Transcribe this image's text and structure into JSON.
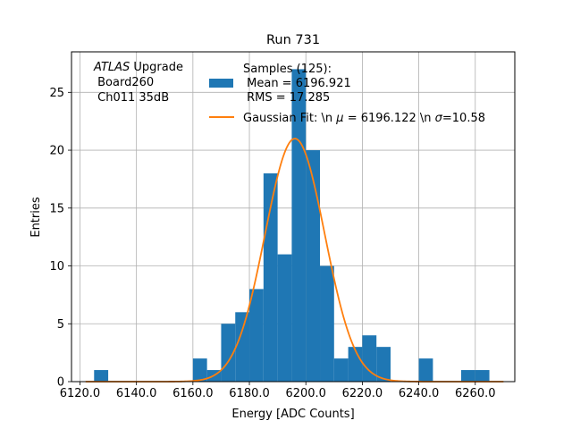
{
  "chart_data": {
    "type": "bar",
    "title": "Run 731",
    "xlabel": "Energy [ADC Counts]",
    "ylabel": "Entries",
    "xlim": [
      6117.0,
      6274.0
    ],
    "ylim": [
      0,
      28.5
    ],
    "grid": true,
    "xticks": [
      6120,
      6140,
      6160,
      6180,
      6200,
      6220,
      6240,
      6260
    ],
    "xtick_labels": [
      "6120.0",
      "6140.0",
      "6160.0",
      "6180.0",
      "6200.0",
      "6220.0",
      "6240.0",
      "6260.0"
    ],
    "yticks": [
      0,
      5,
      10,
      15,
      20,
      25
    ],
    "ytick_labels": [
      "0",
      "5",
      "10",
      "15",
      "20",
      "25"
    ],
    "annotation": {
      "italic_part": "ATLAS",
      "line1_rest": " Upgrade",
      "line2": " Board260",
      "line3": " Ch011 35dB"
    },
    "histogram": {
      "name": "Samples (125):",
      "mean_label": " Mean = 6196.921",
      "rms_label": " RMS = 17.285",
      "color": "#1f77b4",
      "bin_width": 5,
      "bins": [
        {
          "x": 6125,
          "count": 1
        },
        {
          "x": 6160,
          "count": 2
        },
        {
          "x": 6165,
          "count": 1
        },
        {
          "x": 6170,
          "count": 5
        },
        {
          "x": 6175,
          "count": 6
        },
        {
          "x": 6180,
          "count": 8
        },
        {
          "x": 6185,
          "count": 18
        },
        {
          "x": 6190,
          "count": 11
        },
        {
          "x": 6195,
          "count": 27
        },
        {
          "x": 6200,
          "count": 20
        },
        {
          "x": 6205,
          "count": 10
        },
        {
          "x": 6210,
          "count": 2
        },
        {
          "x": 6215,
          "count": 3
        },
        {
          "x": 6220,
          "count": 4
        },
        {
          "x": 6225,
          "count": 3
        },
        {
          "x": 6240,
          "count": 2
        },
        {
          "x": 6255,
          "count": 1
        },
        {
          "x": 6260,
          "count": 1
        }
      ]
    },
    "fit": {
      "label_prefix": "Gaussian Fit: \\n ",
      "mu_symbol": "μ",
      "label_middle": " = 6196.122 \\n ",
      "sigma_symbol": "σ",
      "label_suffix": "=10.58",
      "color": "#ff7f0e",
      "mu": 6196.122,
      "sigma": 10.58,
      "amplitude": 21.0,
      "x_range": [
        6122,
        6270
      ]
    },
    "legend_position": "upper center"
  }
}
